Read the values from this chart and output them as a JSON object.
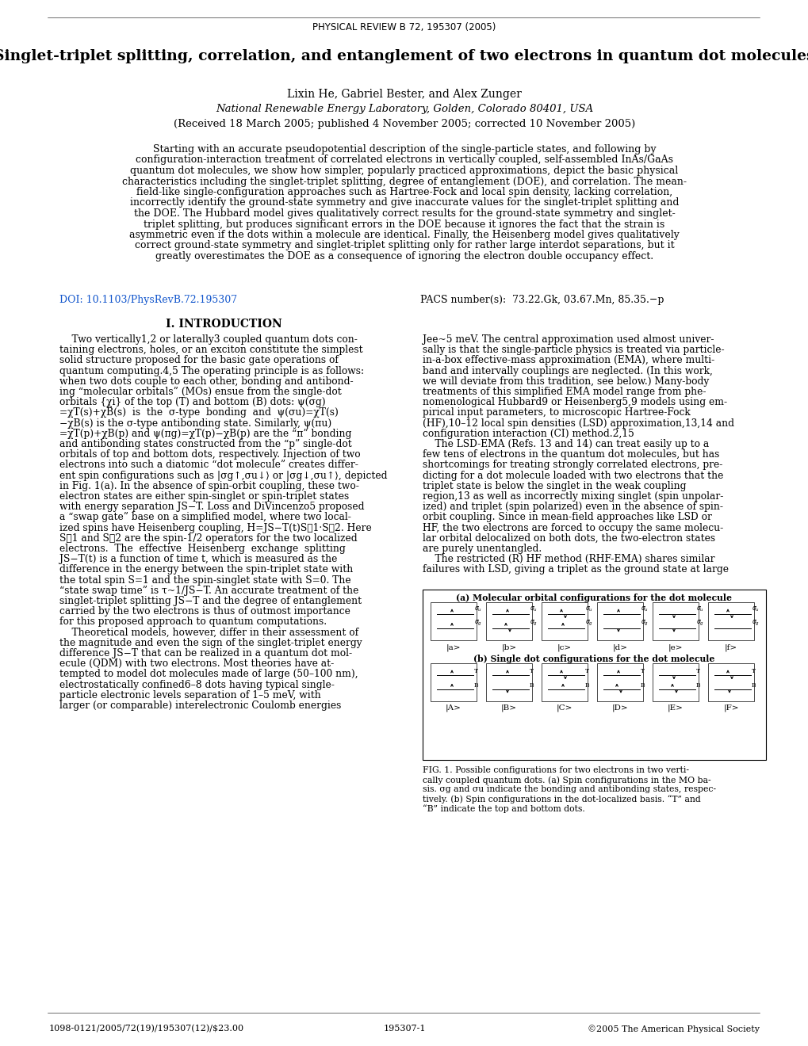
{
  "journal_header": "PHYSICAL REVIEW B 72, 195307 (2005)",
  "title": "Singlet-triplet splitting, correlation, and entanglement of two electrons in quantum dot molecules",
  "authors": "Lixin He, Gabriel Bester, and Alex Zunger",
  "affiliation": "National Renewable Energy Laboratory, Golden, Colorado 80401, USA",
  "received": "(Received 18 March 2005; published 4 November 2005; corrected 10 November 2005)",
  "abstract_lines": [
    "Starting with an accurate pseudopotential description of the single-particle states, and following by",
    "configuration-interaction treatment of correlated electrons in vertically coupled, self-assembled InAs/GaAs",
    "quantum dot molecules, we show how simpler, popularly practiced approximations, depict the basic physical",
    "characteristics including the singlet-triplet splitting, degree of entanglement (DOE), and correlation. The mean-",
    "field-like single-configuration approaches such as Hartree-Fock and local spin density, lacking correlation,",
    "incorrectly identify the ground-state symmetry and give inaccurate values for the singlet-triplet splitting and",
    "the DOE. The Hubbard model gives qualitatively correct results for the ground-state symmetry and singlet-",
    "triplet splitting, but produces significant errors in the DOE because it ignores the fact that the strain is",
    "asymmetric even if the dots within a molecule are identical. Finally, the Heisenberg model gives qualitatively",
    "correct ground-state symmetry and singlet-triplet splitting only for rather large interdot separations, but it",
    "greatly overestimates the DOE as a consequence of ignoring the electron double occupancy effect."
  ],
  "doi": "DOI: 10.1103/PhysRevB.72.195307",
  "pacs": "PACS number(s):  73.22.Gk, 03.67.Mn, 85.35.−p",
  "section_title": "I. INTRODUCTION",
  "col1_lines": [
    "    Two vertically1,2 or laterally3 coupled quantum dots con-",
    "taining electrons, holes, or an exciton constitute the simplest",
    "solid structure proposed for the basic gate operations of",
    "quantum computing.4,5 The operating principle is as follows:",
    "when two dots couple to each other, bonding and antibond-",
    "ing “molecular orbitals” (MOs) ensue from the single-dot",
    "orbitals {χi} of the top (T) and bottom (B) dots: ψ(σg)",
    "=χT(s)+χB(s)  is  the  σ-type  bonding  and  ψ(σu)=χT(s)",
    "−χB(s) is the σ-type antibonding state. Similarly, ψ(πu)",
    "=χT(p)+χB(p) and ψ(πg)=χT(p)−χB(p) are the “π” bonding",
    "and antibonding states constructed from the “p” single-dot",
    "orbitals of top and bottom dots, respectively. Injection of two",
    "electrons into such a diatomic “dot molecule” creates differ-",
    "ent spin configurations such as |σg↑,σu↓⟩ or |σg↓,σu↑⟩, depicted",
    "in Fig. 1(a). In the absence of spin-orbit coupling, these two-",
    "electron states are either spin-singlet or spin-triplet states",
    "with energy separation JS−T. Loss and DiVincenzo5 proposed",
    "a “swap gate” base on a simplified model, where two local-",
    "ized spins have Heisenberg coupling, H=JS−T(t)S⃗1·S⃗2. Here",
    "S⃗1 and S⃗2 are the spin-1/2 operators for the two localized",
    "electrons.  The  effective  Heisenberg  exchange  splitting",
    "JS−T(t) is a function of time t, which is measured as the",
    "difference in the energy between the spin-triplet state with",
    "the total spin S=1 and the spin-singlet state with S=0. The",
    "“state swap time” is τ~1/JS−T. An accurate treatment of the",
    "singlet-triplet splitting JS−T and the degree of entanglement",
    "carried by the two electrons is thus of outmost importance",
    "for this proposed approach to quantum computations.",
    "    Theoretical models, however, differ in their assessment of",
    "the magnitude and even the sign of the singlet-triplet energy",
    "difference JS−T that can be realized in a quantum dot mol-",
    "ecule (QDM) with two electrons. Most theories have at-",
    "tempted to model dot molecules made of large (50–100 nm),",
    "electrostatically confined6–8 dots having typical single-",
    "particle electronic levels separation of 1–5 meV, with",
    "larger (or comparable) interelectronic Coulomb energies"
  ],
  "col2_lines": [
    "Jee~5 meV. The central approximation used almost univer-",
    "sally is that the single-particle physics is treated via particle-",
    "in-a-box effective-mass approximation (EMA), where multi-",
    "band and intervally couplings are neglected. (In this work,",
    "we will deviate from this tradition, see below.) Many-body",
    "treatments of this simplified EMA model range from phe-",
    "nomenological Hubbard9 or Heisenberg5,9 models using em-",
    "pirical input parameters, to microscopic Hartree-Fock",
    "(HF),10–12 local spin densities (LSD) approximation,13,14 and",
    "configuration interaction (CI) method.2,15",
    "    The LSD-EMA (Refs. 13 and 14) can treat easily up to a",
    "few tens of electrons in the quantum dot molecules, but has",
    "shortcomings for treating strongly correlated electrons, pre-",
    "dicting for a dot molecule loaded with two electrons that the",
    "triplet state is below the singlet in the weak coupling",
    "region,13 as well as incorrectly mixing singlet (spin unpolar-",
    "ized) and triplet (spin polarized) even in the absence of spin-",
    "orbit coupling. Since in mean-field approaches like LSD or",
    "HF, the two electrons are forced to occupy the same molecu-",
    "lar orbital delocalized on both dots, the two-electron states",
    "are purely unentangled.",
    "    The restricted (R) HF method (RHF-EMA) shares similar",
    "failures with LSD, giving a triplet as the ground state at large"
  ],
  "fig1a_title": "(a) Molecular orbital configurations for the dot molecule",
  "fig1a_labels": [
    "|a>",
    "|b>",
    "|c>",
    "|d>",
    "|e>",
    "|f>"
  ],
  "fig1b_title": "(b) Single dot configurations for the dot molecule",
  "fig1b_labels": [
    "|A>",
    "|B>",
    "|C>",
    "|D>",
    "|E>",
    "|F>"
  ],
  "fig1_caption_lines": [
    "FIG. 1. Possible configurations for two electrons in two verti-",
    "cally coupled quantum dots. (a) Spin configurations in the MO ba-",
    "sis. σg and σu indicate the bonding and antibonding states, respec-",
    "tively. (b) Spin configurations in the dot-localized basis. “T” and",
    "“B” indicate the top and bottom dots."
  ],
  "footer_left": "1098-0121/2005/72(19)/195307(12)/$23.00",
  "footer_center": "195307-1",
  "footer_right": "©2005 The American Physical Society"
}
